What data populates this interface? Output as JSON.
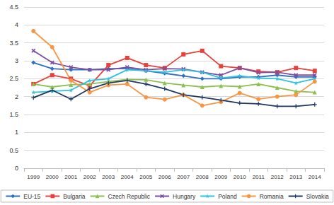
{
  "chart_data": {
    "type": "line",
    "categories": [
      "1999",
      "2000",
      "2001",
      "2002",
      "2003",
      "2004",
      "2005",
      "2006",
      "2007",
      "2008",
      "2009",
      "2010",
      "2011",
      "2012",
      "2013",
      "2014"
    ],
    "ylim": [
      0,
      4.5
    ],
    "yticks": [
      0,
      0.5,
      1,
      1.5,
      2,
      2.5,
      3,
      3.5,
      4,
      4.5
    ],
    "grid": true,
    "legend": "bottom",
    "series": [
      {
        "name": "EU-15",
        "color": "#2f6fbf",
        "marker": "diamond",
        "values": [
          2.95,
          2.78,
          2.75,
          2.75,
          2.78,
          2.78,
          2.72,
          2.65,
          2.58,
          2.5,
          2.5,
          2.55,
          2.55,
          2.6,
          2.55,
          2.55
        ]
      },
      {
        "name": "Bulgaria",
        "color": "#e8413c",
        "marker": "square",
        "values": [
          2.35,
          2.6,
          2.5,
          2.3,
          2.88,
          3.08,
          2.88,
          2.8,
          3.18,
          3.28,
          2.85,
          2.8,
          2.7,
          2.68,
          2.8,
          2.72
        ]
      },
      {
        "name": "Czech Republic",
        "color": "#8cc152",
        "marker": "triangle",
        "values": [
          2.35,
          2.27,
          2.33,
          2.35,
          2.42,
          2.48,
          2.47,
          2.38,
          2.32,
          2.27,
          2.3,
          2.28,
          2.35,
          2.25,
          2.15,
          2.12
        ]
      },
      {
        "name": "Hungary",
        "color": "#7b4fa0",
        "marker": "x",
        "values": [
          3.28,
          2.95,
          2.82,
          2.75,
          2.75,
          2.82,
          2.75,
          2.78,
          2.77,
          2.68,
          2.6,
          2.8,
          2.67,
          2.68,
          2.6,
          2.6
        ]
      },
      {
        "name": "Poland",
        "color": "#2ec4e0",
        "marker": "star",
        "values": [
          2.12,
          2.15,
          2.18,
          2.45,
          2.5,
          2.75,
          2.72,
          2.68,
          2.75,
          2.68,
          2.52,
          2.58,
          2.52,
          2.5,
          2.38,
          2.5
        ]
      },
      {
        "name": "Romania",
        "color": "#f79646",
        "marker": "circle",
        "values": [
          3.83,
          3.38,
          2.45,
          2.12,
          2.32,
          2.35,
          1.98,
          1.92,
          2.05,
          1.75,
          1.85,
          2.1,
          1.93,
          2.0,
          2.05,
          2.42
        ]
      },
      {
        "name": "Slovakia",
        "color": "#1f3864",
        "marker": "plus",
        "values": [
          1.97,
          2.18,
          1.93,
          2.22,
          2.38,
          2.45,
          2.35,
          2.22,
          2.05,
          1.98,
          1.9,
          1.82,
          1.8,
          1.73,
          1.73,
          1.78
        ]
      }
    ]
  }
}
